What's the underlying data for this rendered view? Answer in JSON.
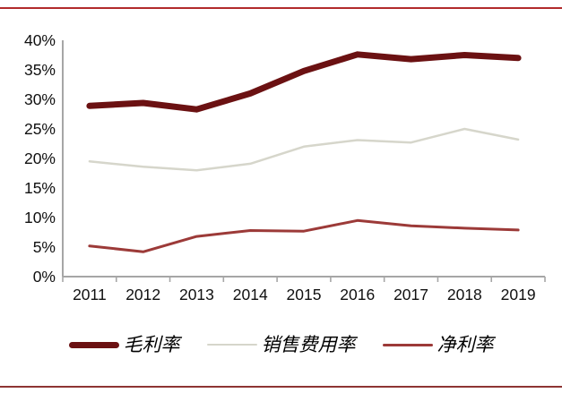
{
  "chart_data": {
    "type": "line",
    "title": "",
    "xlabel": "",
    "ylabel": "",
    "categories": [
      "2011",
      "2012",
      "2013",
      "2014",
      "2015",
      "2016",
      "2017",
      "2018",
      "2019"
    ],
    "series": [
      {
        "key": "gross-margin",
        "name": "毛利率",
        "color": "#6b1112",
        "line_width": 7,
        "values": [
          28.9,
          29.4,
          28.3,
          31.0,
          34.8,
          37.6,
          36.8,
          37.5,
          37.0
        ]
      },
      {
        "key": "sales-expense-ratio",
        "name": "销售费用率",
        "color": "#d6d6cb",
        "line_width": 2.5,
        "values": [
          19.5,
          18.6,
          18.0,
          19.1,
          22.0,
          23.1,
          22.7,
          25.0,
          23.2
        ]
      },
      {
        "key": "net-margin",
        "name": "净利率",
        "color": "#9c3a38",
        "line_width": 3,
        "values": [
          5.2,
          4.2,
          6.8,
          7.8,
          7.7,
          9.5,
          8.6,
          8.2,
          7.9
        ]
      }
    ],
    "ylim": [
      0,
      40
    ],
    "ytick_step": 5,
    "ytick_labels": [
      "0%",
      "5%",
      "10%",
      "15%",
      "20%",
      "25%",
      "30%",
      "35%",
      "40%"
    ],
    "grid": false,
    "legend_position": "bottom"
  },
  "style_tokens": {
    "axis_color": "#a6a6a6",
    "tick_label_color": "#101010",
    "top_rule_color": "#b22a2c",
    "bottom_rule_color": "#8e3433"
  }
}
